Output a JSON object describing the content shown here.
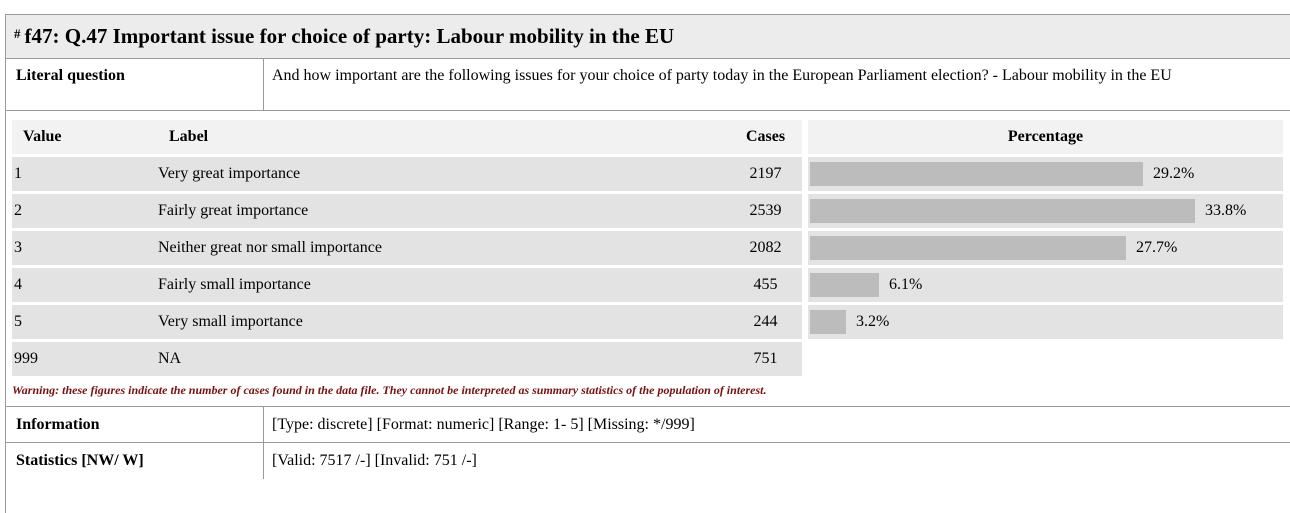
{
  "header": {
    "hash": "#",
    "title": "f47: Q.47 Important issue for choice of party: Labour mobility in the EU"
  },
  "literal_question": {
    "label": "Literal question",
    "text": "And how important are the following issues for your choice of party today in the European Parliament election? - Labour mobility in the EU"
  },
  "frequency_table": {
    "columns": {
      "value": "Value",
      "label": "Label",
      "cases": "Cases",
      "percentage": "Percentage"
    },
    "rows": [
      {
        "value": "1",
        "label": "Very great importance",
        "cases": "2197",
        "percentage": "29.2%",
        "pct_num": 29.2
      },
      {
        "value": "2",
        "label": "Fairly great importance",
        "cases": "2539",
        "percentage": "33.8%",
        "pct_num": 33.8
      },
      {
        "value": "3",
        "label": "Neither great nor small importance",
        "cases": "2082",
        "percentage": "27.7%",
        "pct_num": 27.7
      },
      {
        "value": "4",
        "label": "Fairly small importance",
        "cases": "455",
        "percentage": "6.1%",
        "pct_num": 6.1
      },
      {
        "value": "5",
        "label": "Very small importance",
        "cases": "244",
        "percentage": "3.2%",
        "pct_num": 3.2
      },
      {
        "value": "999",
        "label": "NA",
        "cases": "751",
        "percentage": "",
        "pct_num": null
      }
    ],
    "warning": "Warning: these figures indicate the number of cases found in the data file. They cannot be interpreted as summary statistics of the population of interest."
  },
  "information": {
    "label": "Information",
    "value": "[Type: discrete] [Format: numeric] [Range: 1- 5] [Missing: */999]"
  },
  "statistics": {
    "label": "Statistics [NW/ W]",
    "value": "[Valid: 7517 /-] [Invalid: 751 /-]"
  },
  "colors": {
    "bar": "#bcbcbc",
    "row_bg": "#e3e3e3",
    "header_bg": "#ececec",
    "warning_text": "#7a1010"
  }
}
